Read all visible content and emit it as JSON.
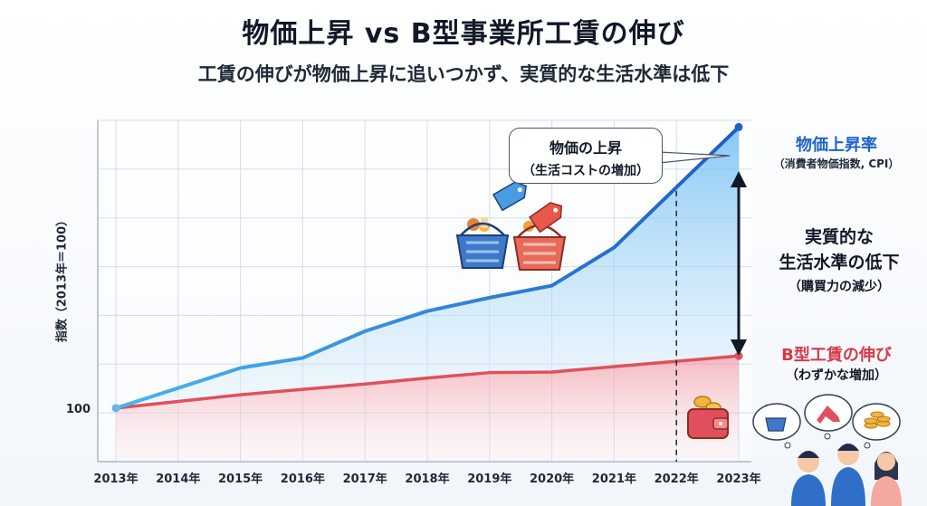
{
  "title": "物価上昇 vs B型事業所工賃の伸び",
  "subtitle": "工賃の伸びが物価上昇に追いつかず、実質的な生活水準は低下",
  "colors": {
    "price": "#1e63c9",
    "price_light": "#49b5ee",
    "wage": "#e0505c",
    "accent_text": "#1e63c9"
  },
  "icons": [
    "shopping-basket-icon",
    "price-tag-icon",
    "wallet-icon",
    "coin-icon",
    "people-thinking-icon",
    "high-heel-icon",
    "coin-stack-icon"
  ],
  "callout": {
    "line1": "物価の上昇",
    "line2": "（生活コストの増加）"
  },
  "labels": {
    "price_title": "物価上昇率",
    "price_sub": "（消費者物価指数, CPI）",
    "gap_line1": "実質的な",
    "gap_line2": "生活水準の低下",
    "gap_sub": "（購買力の減少）",
    "wage_title": "B型工賃の伸び",
    "wage_sub": "（わずかな増加）"
  },
  "chart_data": {
    "type": "area",
    "ylabel": "指数（2013年＝100）",
    "y_ticks": [
      {
        "value": 100,
        "label": "100"
      }
    ],
    "ylim": [
      92,
      143
    ],
    "grid": true,
    "categories": [
      "2013年",
      "2014年",
      "2015年",
      "2016年",
      "2017年",
      "2018年",
      "2019年",
      "2020年",
      "2021年",
      "2022年",
      "2023年"
    ],
    "series": [
      {
        "name": "物価上昇率",
        "color": "#1e63c9",
        "values": [
          100,
          103,
          106,
          107.5,
          111.5,
          114.5,
          116.5,
          118.3,
          124,
          133,
          142
        ]
      },
      {
        "name": "B型工賃の伸び",
        "color": "#e0505c",
        "values": [
          100,
          101,
          102,
          102.8,
          103.6,
          104.5,
          105.3,
          105.4,
          106.2,
          107,
          107.8
        ]
      }
    ],
    "annotations": [
      {
        "type": "vline",
        "x": "2022年",
        "style": "dashed"
      }
    ]
  }
}
